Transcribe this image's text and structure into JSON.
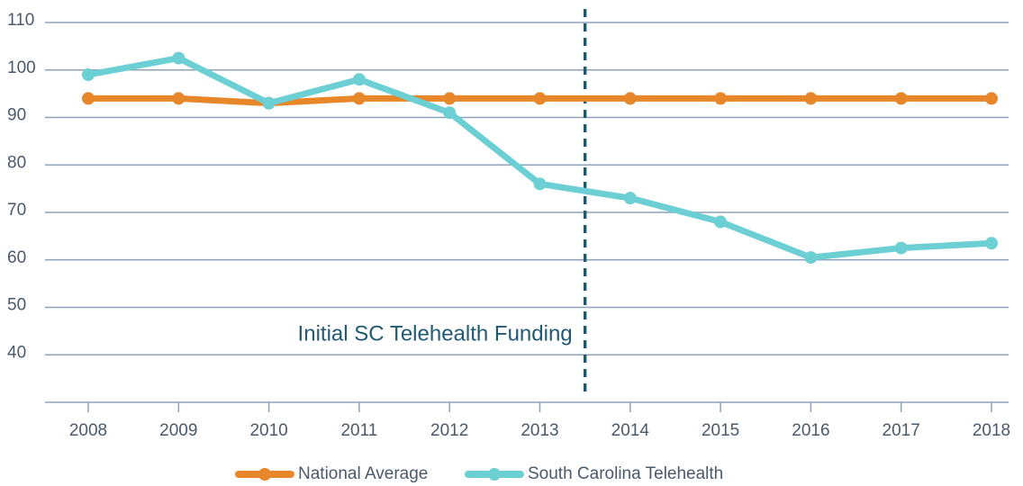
{
  "chart_data": {
    "type": "line",
    "x": [
      2008,
      2009,
      2010,
      2011,
      2012,
      2013,
      2014,
      2015,
      2016,
      2017,
      2018
    ],
    "xlim": [
      2008,
      2018
    ],
    "xticks": [
      2008,
      2009,
      2010,
      2011,
      2012,
      2013,
      2014,
      2015,
      2016,
      2017,
      2018
    ],
    "ylim": [
      30,
      110
    ],
    "yticks": [
      40,
      50,
      60,
      70,
      80,
      90,
      100,
      110
    ],
    "grid": true,
    "legend": "bottom",
    "series": [
      {
        "name": "National Average",
        "color": "#e8862a",
        "values": [
          94,
          94,
          93,
          94,
          94,
          94,
          94,
          94,
          94,
          94,
          94
        ]
      },
      {
        "name": "South Carolina Telehealth",
        "color": "#6ccfd4",
        "values": [
          99,
          102.5,
          93,
          98,
          91,
          76,
          73,
          68,
          60.5,
          62.5,
          63.5
        ]
      }
    ],
    "annotation": {
      "text": "Initial SC Telehealth Funding",
      "x": 2013.5
    }
  }
}
